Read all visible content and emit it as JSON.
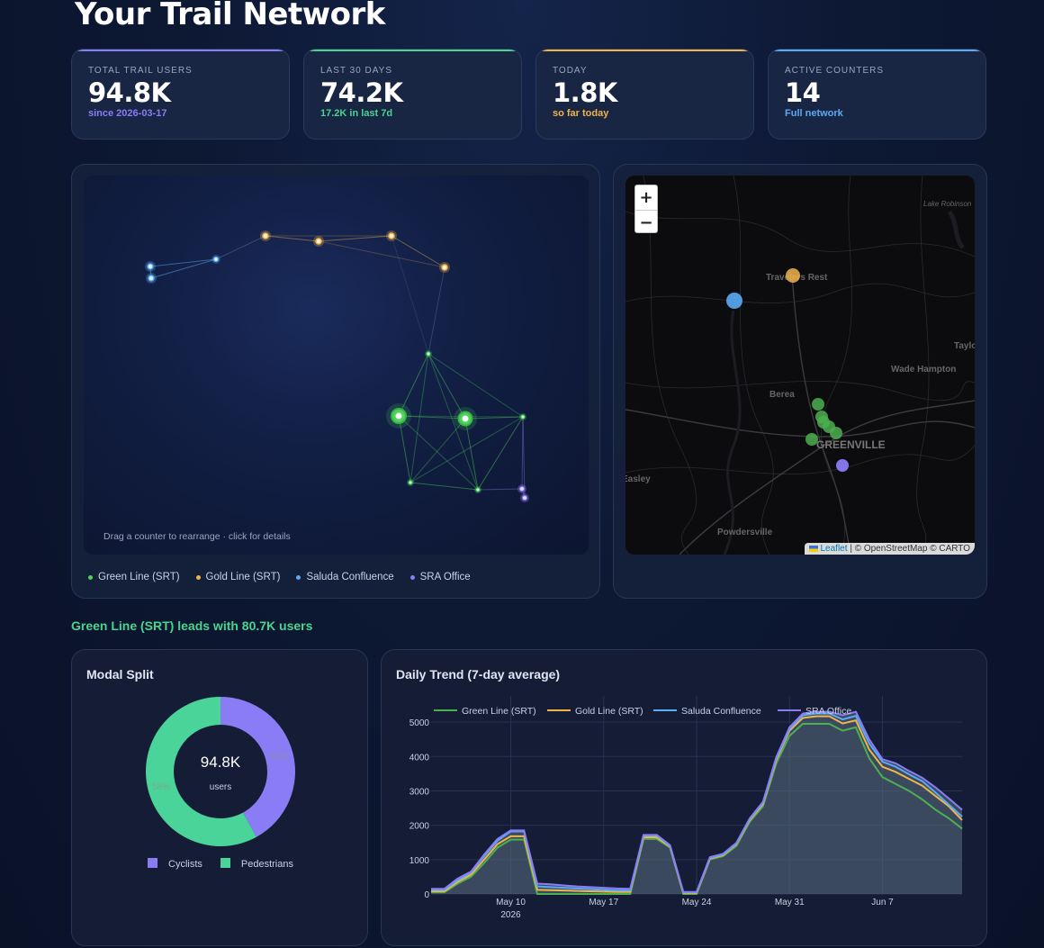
{
  "page": {
    "title": "Your Trail Network"
  },
  "kpis": [
    {
      "label": "TOTAL TRAIL USERS",
      "value": "94.8K",
      "sub": "since 2026-03-17",
      "accent": "#8a7cf5"
    },
    {
      "label": "LAST 30 DAYS",
      "value": "74.2K",
      "sub": "17.2K in last 7d",
      "accent": "#4ad48f"
    },
    {
      "label": "TODAY",
      "value": "1.8K",
      "sub": "so far today",
      "accent": "#f0b44c"
    },
    {
      "label": "ACTIVE COUNTERS",
      "value": "14",
      "sub": "Full network",
      "accent": "#5aaaf5"
    }
  ],
  "network": {
    "hint": "Drag a counter to rearrange · click for details",
    "legend": [
      {
        "label": "Green Line (SRT)",
        "color": "#4ad458"
      },
      {
        "label": "Gold Line (SRT)",
        "color": "#f0b44c"
      },
      {
        "label": "Saluda Confluence",
        "color": "#5aaaf5"
      },
      {
        "label": "SRA Office",
        "color": "#8a7cf5"
      }
    ]
  },
  "map": {
    "zoom_in": "+",
    "zoom_out": "−",
    "attribution_leaflet": "Leaflet",
    "attribution_rest": "| © OpenStreetMap © CARTO",
    "labels": [
      "Lake Robinson",
      "Travelers Rest",
      "Taylo",
      "Wade Hampton",
      "Berea",
      "GREENVILLE",
      "Easley",
      "Powdersville"
    ]
  },
  "lead": {
    "text": "Green Line (SRT) leads with 80.7K users"
  },
  "modal_split": {
    "title": "Modal Split",
    "center_value": "94.8K",
    "center_label": "users",
    "chart_data": {
      "type": "pie",
      "categories": [
        "Cyclists",
        "Pedestrians"
      ],
      "values": [
        42,
        58
      ],
      "colors": [
        "#8a7cf5",
        "#4ad49a"
      ],
      "labels": [
        "42%",
        "58%"
      ]
    }
  },
  "daily_trend": {
    "title": "Daily Trend (7-day average)",
    "chart_data": {
      "type": "area",
      "x": [
        "2026-05-04",
        "2026-05-05",
        "2026-05-06",
        "2026-05-07",
        "2026-05-08",
        "2026-05-09",
        "2026-05-10",
        "2026-05-11",
        "2026-05-12",
        "2026-05-13",
        "2026-05-14",
        "2026-05-15",
        "2026-05-16",
        "2026-05-17",
        "2026-05-18",
        "2026-05-19",
        "2026-05-20",
        "2026-05-21",
        "2026-05-22",
        "2026-05-23",
        "2026-05-24",
        "2026-05-25",
        "2026-05-26",
        "2026-05-27",
        "2026-05-28",
        "2026-05-29",
        "2026-05-30",
        "2026-05-31",
        "2026-06-01",
        "2026-06-02",
        "2026-06-03",
        "2026-06-04",
        "2026-06-05",
        "2026-06-06",
        "2026-06-07",
        "2026-06-08",
        "2026-06-09",
        "2026-06-10",
        "2026-06-11",
        "2026-06-12",
        "2026-06-13"
      ],
      "x_tick_labels": [
        "May 10",
        "2026",
        "May 17",
        "May 24",
        "May 31",
        "Jun 7"
      ],
      "y_ticks": [
        0,
        1000,
        2000,
        3000,
        4000,
        5000
      ],
      "ylim": [
        0,
        5500
      ],
      "grid": true,
      "legend_placement": "top",
      "series": [
        {
          "name": "Green Line (SRT)",
          "color": "#4caf50",
          "values": [
            50,
            50,
            300,
            500,
            900,
            1350,
            1580,
            1580,
            0,
            0,
            0,
            0,
            0,
            0,
            0,
            0,
            1600,
            1600,
            1350,
            0,
            0,
            1000,
            1100,
            1400,
            2100,
            2550,
            3800,
            4600,
            4950,
            4950,
            4950,
            4750,
            4850,
            3950,
            3400,
            3200,
            3000,
            2750,
            2450,
            2200,
            1900
          ]
        },
        {
          "name": "Gold Line (SRT)",
          "color": "#f0b44c",
          "values": [
            80,
            80,
            350,
            560,
            1000,
            1450,
            1680,
            1680,
            120,
            110,
            100,
            90,
            80,
            70,
            60,
            60,
            1650,
            1650,
            1380,
            30,
            30,
            1030,
            1130,
            1450,
            2150,
            2620,
            3900,
            4750,
            5120,
            5170,
            5170,
            4960,
            5050,
            4200,
            3700,
            3550,
            3350,
            3150,
            2850,
            2550,
            2150
          ]
        },
        {
          "name": "Saluda Confluence",
          "color": "#5aaaf5",
          "values": [
            120,
            120,
            400,
            620,
            1100,
            1550,
            1820,
            1820,
            220,
            200,
            180,
            160,
            140,
            120,
            100,
            100,
            1700,
            1700,
            1400,
            50,
            50,
            1050,
            1150,
            1470,
            2180,
            2650,
            3950,
            4800,
            5200,
            5250,
            5250,
            5080,
            5180,
            4380,
            3850,
            3700,
            3480,
            3280,
            2950,
            2600,
            2250
          ]
        },
        {
          "name": "SRA Office",
          "color": "#8a7cf5",
          "values": [
            150,
            150,
            450,
            650,
            1150,
            1600,
            1850,
            1850,
            300,
            280,
            250,
            220,
            200,
            180,
            160,
            150,
            1720,
            1720,
            1420,
            60,
            60,
            1070,
            1170,
            1490,
            2200,
            2680,
            3980,
            4850,
            5250,
            5300,
            5300,
            5200,
            5300,
            4500,
            3920,
            3800,
            3580,
            3380,
            3100,
            2780,
            2450
          ]
        }
      ]
    }
  }
}
